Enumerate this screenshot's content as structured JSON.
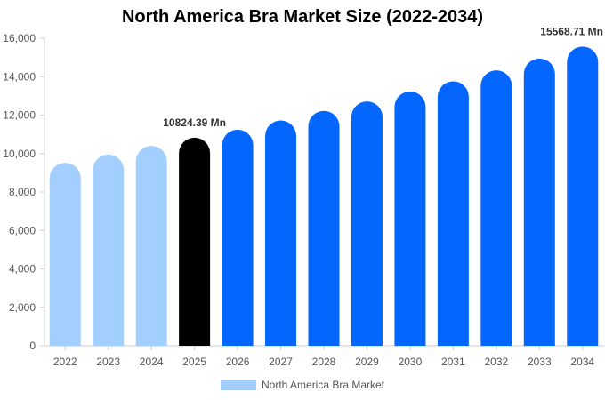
{
  "chart_data": {
    "type": "bar",
    "title": "North America Bra Market Size (2022-2034)",
    "categories": [
      "2022",
      "2023",
      "2024",
      "2025",
      "2026",
      "2027",
      "2028",
      "2029",
      "2030",
      "2031",
      "2032",
      "2033",
      "2034"
    ],
    "series": [
      {
        "name": "North America Bra Market",
        "values": [
          9520,
          9950,
          10400,
          10824.39,
          11240,
          11720,
          12220,
          12710,
          13230,
          13760,
          14330,
          14940,
          15568.71
        ]
      }
    ],
    "ylim": [
      0,
      16000
    ],
    "yticks": [
      "0",
      "2,000",
      "4,000",
      "6,000",
      "8,000",
      "10,000",
      "12,000",
      "14,000",
      "16,000"
    ],
    "annotations": [
      {
        "category": "2025",
        "text": "10824.39 Mn"
      },
      {
        "category": "2034",
        "text": "15568.71 Mn"
      }
    ],
    "colors": {
      "historical": "#a3cfff",
      "current": "#000000",
      "forecast": "#0366ff",
      "legend": "#a3cfff"
    },
    "segments": {
      "historical": [
        "2022",
        "2023",
        "2024"
      ],
      "current": [
        "2025"
      ]
    },
    "grid": false,
    "legend_position": "bottom"
  }
}
